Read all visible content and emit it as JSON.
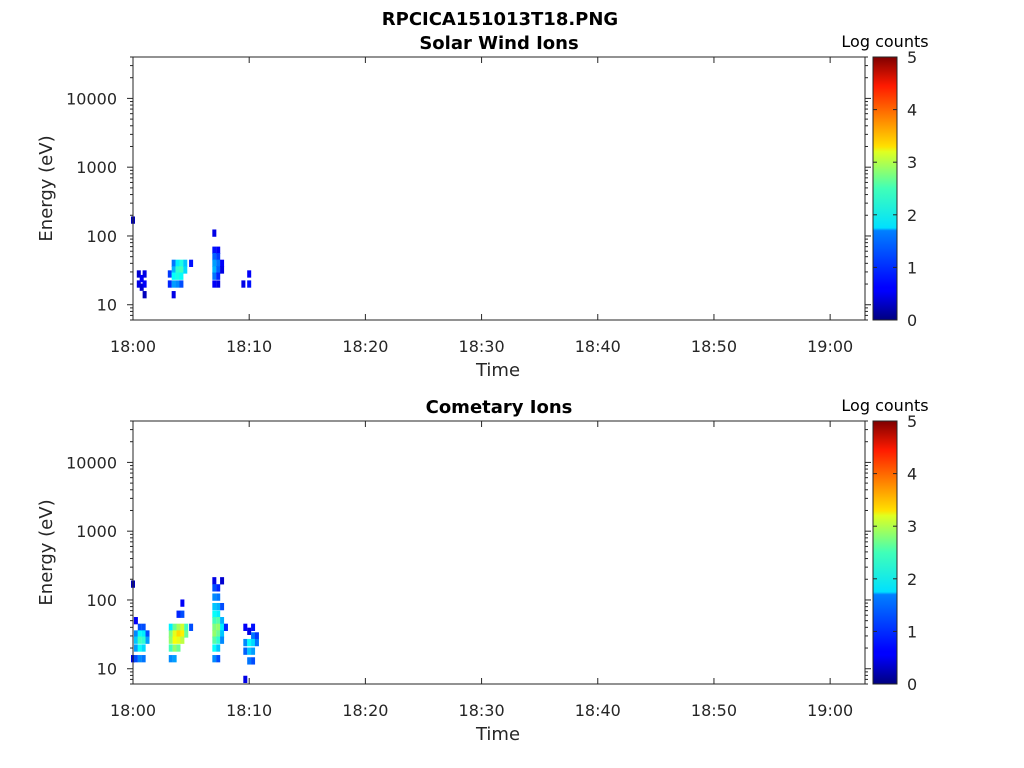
{
  "figure": {
    "title": "RPCICA151013T18.PNG"
  },
  "chart_data": [
    {
      "type": "heatmap",
      "title": "Solar Wind Ions",
      "xlabel": "Time",
      "ylabel": "Energy (eV)",
      "x_scale": "time",
      "y_scale": "log",
      "xlim": [
        "18:00",
        "19:03"
      ],
      "ylim": [
        6,
        40000
      ],
      "x_ticks": [
        "18:00",
        "18:10",
        "18:20",
        "18:30",
        "18:40",
        "18:50",
        "19:00"
      ],
      "y_ticks": [
        "10",
        "100",
        "1000",
        "10000"
      ],
      "grid": false,
      "colorbar": {
        "label": "Log counts",
        "range": [
          0,
          5
        ],
        "ticks": [
          "0",
          "1",
          "2",
          "3",
          "4",
          "5"
        ],
        "colormap": "jet"
      },
      "cells_columns": [
        "time",
        "energy_eV",
        "log_counts"
      ],
      "cells": [
        [
          "18:00:00",
          170,
          0.3
        ],
        [
          "18:00:30",
          28,
          0.4
        ],
        [
          "18:00:30",
          20,
          0.5
        ],
        [
          "18:00:45",
          24,
          0.6
        ],
        [
          "18:00:45",
          18,
          0.4
        ],
        [
          "18:01:00",
          28,
          0.5
        ],
        [
          "18:01:00",
          20,
          0.6
        ],
        [
          "18:01:00",
          14,
          0.3
        ],
        [
          "18:03:10",
          28,
          0.9
        ],
        [
          "18:03:10",
          20,
          0.8
        ],
        [
          "18:03:30",
          40,
          1.2
        ],
        [
          "18:03:30",
          32,
          1.5
        ],
        [
          "18:03:30",
          26,
          1.9
        ],
        [
          "18:03:30",
          20,
          1.4
        ],
        [
          "18:03:30",
          14,
          0.5
        ],
        [
          "18:03:50",
          40,
          1.8
        ],
        [
          "18:03:50",
          32,
          2.1
        ],
        [
          "18:03:50",
          26,
          2.0
        ],
        [
          "18:03:50",
          20,
          1.3
        ],
        [
          "18:04:10",
          40,
          2.0
        ],
        [
          "18:04:10",
          32,
          2.2
        ],
        [
          "18:04:10",
          26,
          1.9
        ],
        [
          "18:04:10",
          20,
          1.0
        ],
        [
          "18:04:30",
          40,
          1.6
        ],
        [
          "18:04:30",
          32,
          1.7
        ],
        [
          "18:05:00",
          40,
          0.7
        ],
        [
          "18:07:00",
          110,
          0.5
        ],
        [
          "18:07:00",
          62,
          0.7
        ],
        [
          "18:07:00",
          50,
          1.1
        ],
        [
          "18:07:00",
          40,
          1.4
        ],
        [
          "18:07:00",
          32,
          1.5
        ],
        [
          "18:07:00",
          26,
          1.2
        ],
        [
          "18:07:00",
          20,
          0.6
        ],
        [
          "18:07:20",
          62,
          0.6
        ],
        [
          "18:07:20",
          50,
          0.9
        ],
        [
          "18:07:20",
          40,
          1.2
        ],
        [
          "18:07:20",
          32,
          1.1
        ],
        [
          "18:07:20",
          26,
          0.8
        ],
        [
          "18:07:20",
          20,
          0.5
        ],
        [
          "18:07:40",
          40,
          0.6
        ],
        [
          "18:07:40",
          32,
          0.5
        ],
        [
          "18:09:30",
          20,
          0.5
        ],
        [
          "18:10:00",
          28,
          0.6
        ],
        [
          "18:10:00",
          20,
          0.7
        ]
      ]
    },
    {
      "type": "heatmap",
      "title": "Cometary Ions",
      "xlabel": "Time",
      "ylabel": "Energy (eV)",
      "x_scale": "time",
      "y_scale": "log",
      "xlim": [
        "18:00",
        "19:03"
      ],
      "ylim": [
        6,
        40000
      ],
      "x_ticks": [
        "18:00",
        "18:10",
        "18:20",
        "18:30",
        "18:40",
        "18:50",
        "19:00"
      ],
      "y_ticks": [
        "10",
        "100",
        "1000",
        "10000"
      ],
      "grid": false,
      "colorbar": {
        "label": "Log counts",
        "range": [
          0,
          5
        ],
        "ticks": [
          "0",
          "1",
          "2",
          "3",
          "4",
          "5"
        ],
        "colormap": "jet"
      },
      "cells_columns": [
        "time",
        "energy_eV",
        "log_counts"
      ],
      "cells": [
        [
          "18:00:00",
          170,
          0.3
        ],
        [
          "18:00:00",
          14,
          0.5
        ],
        [
          "18:00:15",
          50,
          0.6
        ],
        [
          "18:00:15",
          32,
          1.3
        ],
        [
          "18:00:15",
          26,
          1.6
        ],
        [
          "18:00:15",
          20,
          1.4
        ],
        [
          "18:00:15",
          14,
          1.0
        ],
        [
          "18:00:35",
          40,
          1.0
        ],
        [
          "18:00:35",
          32,
          1.9
        ],
        [
          "18:00:35",
          26,
          2.2
        ],
        [
          "18:00:35",
          20,
          1.9
        ],
        [
          "18:00:35",
          14,
          1.3
        ],
        [
          "18:00:55",
          40,
          1.0
        ],
        [
          "18:00:55",
          32,
          1.8
        ],
        [
          "18:00:55",
          26,
          2.1
        ],
        [
          "18:00:55",
          20,
          1.7
        ],
        [
          "18:00:55",
          14,
          1.2
        ],
        [
          "18:01:15",
          32,
          1.0
        ],
        [
          "18:01:15",
          26,
          1.4
        ],
        [
          "18:03:15",
          40,
          1.8
        ],
        [
          "18:03:15",
          32,
          2.5
        ],
        [
          "18:03:15",
          26,
          2.6
        ],
        [
          "18:03:15",
          20,
          2.2
        ],
        [
          "18:03:15",
          14,
          1.3
        ],
        [
          "18:03:35",
          40,
          2.4
        ],
        [
          "18:03:35",
          32,
          3.0
        ],
        [
          "18:03:35",
          26,
          3.1
        ],
        [
          "18:03:35",
          20,
          2.6
        ],
        [
          "18:03:35",
          14,
          1.4
        ],
        [
          "18:03:55",
          62,
          0.8
        ],
        [
          "18:03:55",
          40,
          2.7
        ],
        [
          "18:03:55",
          32,
          3.3
        ],
        [
          "18:03:55",
          26,
          3.0
        ],
        [
          "18:03:55",
          20,
          2.4
        ],
        [
          "18:04:15",
          90,
          0.6
        ],
        [
          "18:04:15",
          62,
          1.0
        ],
        [
          "18:04:15",
          40,
          2.9
        ],
        [
          "18:04:15",
          32,
          3.2
        ],
        [
          "18:04:15",
          26,
          2.8
        ],
        [
          "18:04:35",
          40,
          2.2
        ],
        [
          "18:04:35",
          32,
          2.4
        ],
        [
          "18:05:00",
          40,
          1.0
        ],
        [
          "18:07:00",
          190,
          0.5
        ],
        [
          "18:07:00",
          150,
          1.0
        ],
        [
          "18:07:00",
          110,
          1.3
        ],
        [
          "18:07:00",
          80,
          1.6
        ],
        [
          "18:07:00",
          62,
          1.9
        ],
        [
          "18:07:00",
          50,
          2.2
        ],
        [
          "18:07:00",
          40,
          2.5
        ],
        [
          "18:07:00",
          32,
          2.6
        ],
        [
          "18:07:00",
          26,
          2.3
        ],
        [
          "18:07:00",
          20,
          1.9
        ],
        [
          "18:07:00",
          14,
          1.3
        ],
        [
          "18:07:20",
          150,
          0.8
        ],
        [
          "18:07:20",
          110,
          1.2
        ],
        [
          "18:07:20",
          80,
          1.5
        ],
        [
          "18:07:20",
          62,
          1.8
        ],
        [
          "18:07:20",
          50,
          2.3
        ],
        [
          "18:07:20",
          40,
          2.6
        ],
        [
          "18:07:20",
          32,
          2.4
        ],
        [
          "18:07:20",
          26,
          2.1
        ],
        [
          "18:07:20",
          20,
          1.6
        ],
        [
          "18:07:20",
          14,
          1.0
        ],
        [
          "18:07:40",
          190,
          0.4
        ],
        [
          "18:07:40",
          80,
          1.0
        ],
        [
          "18:07:40",
          50,
          1.5
        ],
        [
          "18:07:40",
          40,
          1.8
        ],
        [
          "18:07:40",
          32,
          1.6
        ],
        [
          "18:07:40",
          26,
          1.3
        ],
        [
          "18:08:00",
          40,
          0.8
        ],
        [
          "18:09:40",
          40,
          0.6
        ],
        [
          "18:09:40",
          24,
          1.3
        ],
        [
          "18:09:40",
          18,
          1.1
        ],
        [
          "18:09:40",
          7,
          0.5
        ],
        [
          "18:10:00",
          35,
          0.5
        ],
        [
          "18:10:00",
          24,
          1.9
        ],
        [
          "18:10:00",
          18,
          1.6
        ],
        [
          "18:10:00",
          13,
          1.2
        ],
        [
          "18:10:20",
          40,
          0.7
        ],
        [
          "18:10:20",
          30,
          1.2
        ],
        [
          "18:10:20",
          24,
          1.7
        ],
        [
          "18:10:20",
          18,
          1.4
        ],
        [
          "18:10:20",
          13,
          1.0
        ],
        [
          "18:10:40",
          30,
          0.9
        ],
        [
          "18:10:40",
          24,
          1.2
        ]
      ]
    }
  ]
}
